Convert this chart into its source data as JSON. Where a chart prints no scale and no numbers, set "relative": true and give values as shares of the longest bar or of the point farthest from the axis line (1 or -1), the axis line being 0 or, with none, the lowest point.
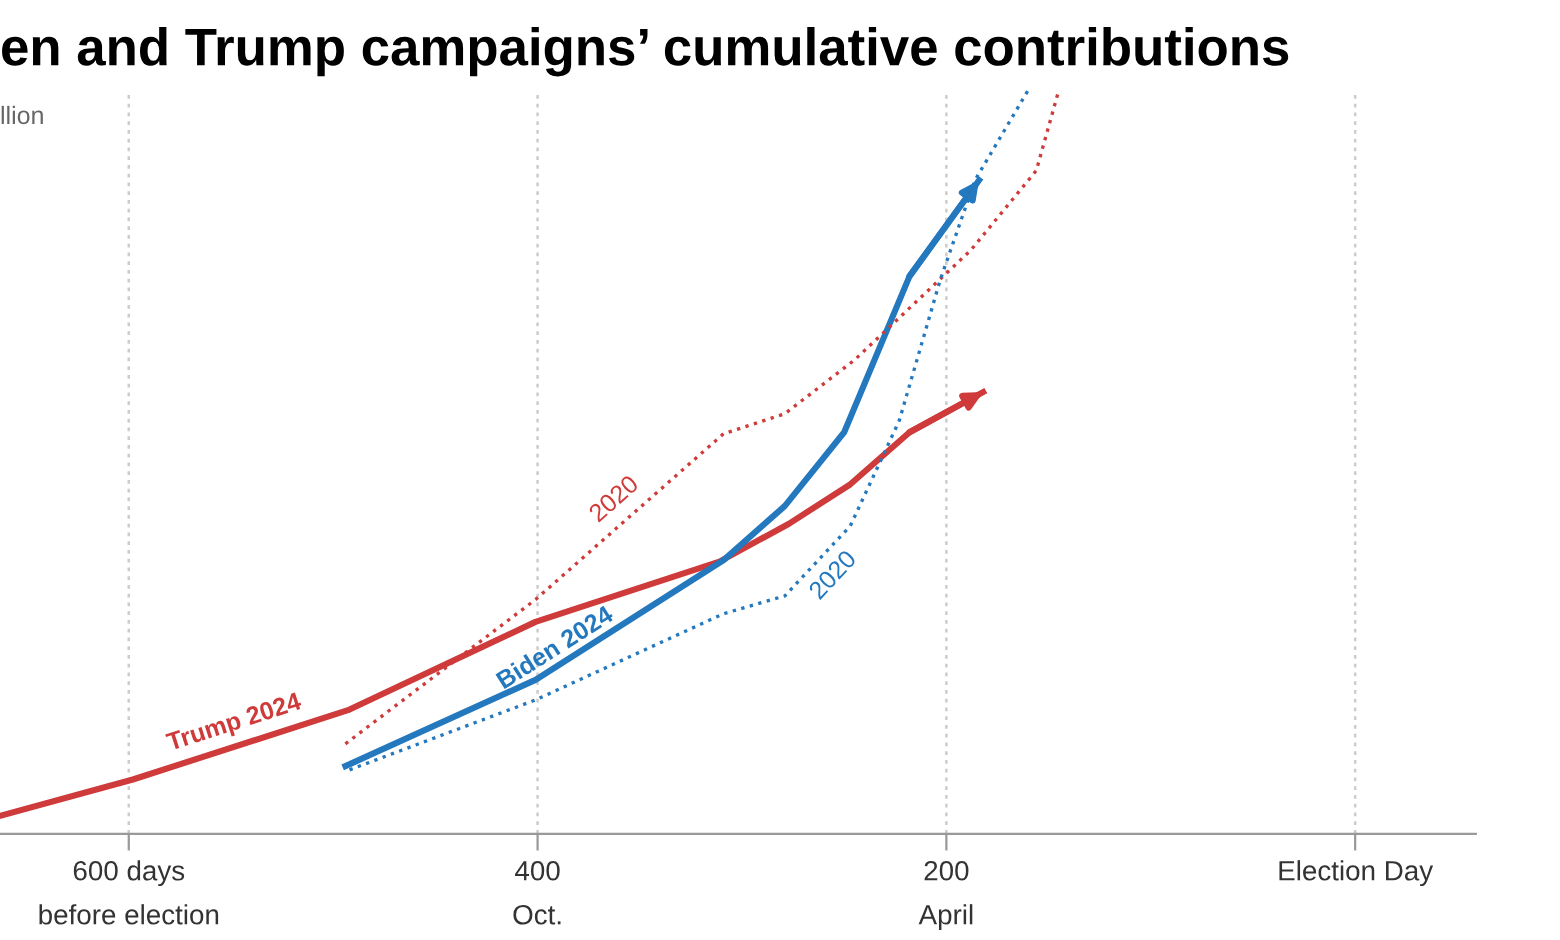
{
  "chart_data": {
    "type": "line",
    "title": "en and Trump campaigns’ cumulative contributions",
    "ylabel": "llion",
    "relative": true,
    "xlim": [
      663,
      -59
    ],
    "xticks": [
      {
        "value": 600,
        "label": "600 days"
      },
      400,
      200,
      {
        "value": 0,
        "label": "Election Day"
      }
    ],
    "annotations": [
      "before election",
      "Oct.",
      "April"
    ],
    "grid": "x",
    "legend": false,
    "series": [
      {
        "name": "Trump 2024",
        "color": "#cf3a3a",
        "line_style": "solid",
        "x": [
          663,
          598,
          492,
          401,
          311,
          277,
          247,
          218,
          182
        ],
        "values": [
          0.024,
          0.073,
          0.167,
          0.285,
          0.366,
          0.417,
          0.47,
          0.54,
          0.594
        ]
      },
      {
        "name": "Biden 2024",
        "color": "#2378be",
        "line_style": "solid",
        "x": [
          494,
          401,
          309,
          279,
          250,
          218,
          184
        ],
        "values": [
          0.091,
          0.207,
          0.368,
          0.441,
          0.54,
          0.75,
          0.879
        ]
      },
      {
        "name": "2020",
        "color": "#cf3a3a",
        "line_style": "dotted",
        "x": [
          494,
          401,
          309,
          279,
          245,
          188,
          156,
          145
        ],
        "values": [
          0.121,
          0.315,
          0.538,
          0.565,
          0.637,
          0.785,
          0.892,
          1.0
        ]
      },
      {
        "name": "2020",
        "color": "#2378be",
        "line_style": "dotted",
        "x": [
          492,
          401,
          309,
          279,
          247,
          223,
          203,
          186,
          160
        ],
        "values": [
          0.086,
          0.18,
          0.296,
          0.32,
          0.414,
          0.556,
          0.745,
          0.879,
          1.0
        ]
      }
    ]
  }
}
